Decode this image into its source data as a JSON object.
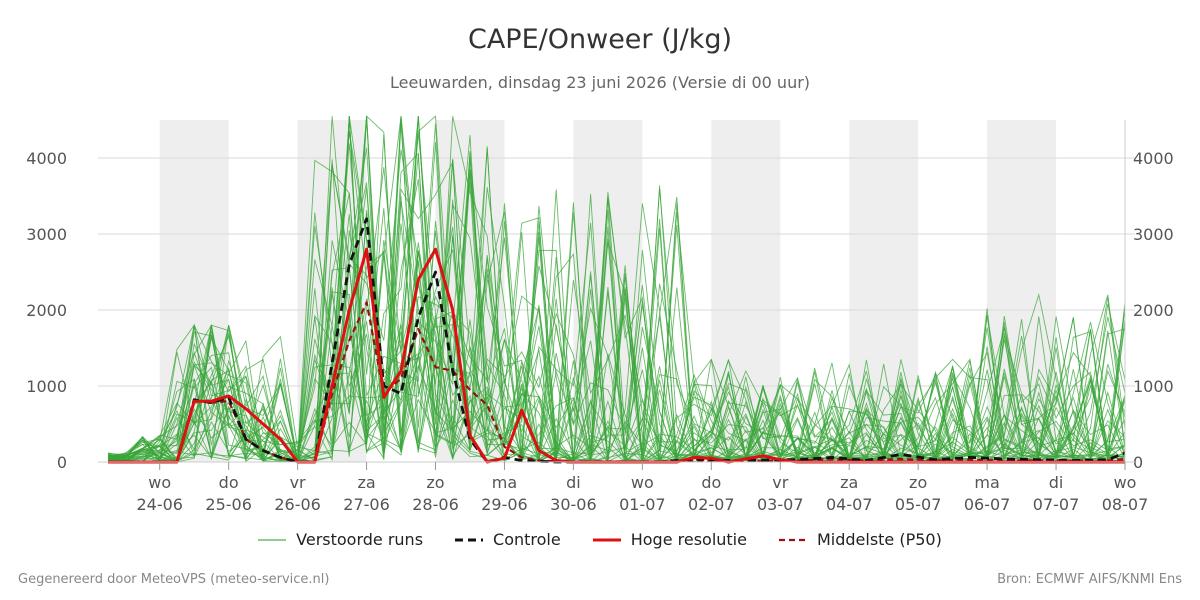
{
  "header": {
    "title": "CAPE/Onweer (J/kg)",
    "subtitle": "Leeuwarden, dinsdag 23 juni 2026 (Versie di 00 uur)"
  },
  "footer": {
    "left": "Gegenereerd door MeteoVPS (meteo-service.nl)",
    "right": "Bron: ECMWF AIFS/KNMI Ens"
  },
  "legend": {
    "items": [
      {
        "label": "Verstoorde runs",
        "color": "#4caf50",
        "style": "thin"
      },
      {
        "label": "Controle",
        "color": "#111111",
        "style": "dashed"
      },
      {
        "label": "Hoge resolutie",
        "color": "#dd1111",
        "style": "solid"
      },
      {
        "label": "Middelste (P50)",
        "color": "#991111",
        "style": "dashed-thin"
      }
    ]
  },
  "chart_data": {
    "type": "line",
    "title": "CAPE/Onweer (J/kg)",
    "subtitle": "Leeuwarden, dinsdag 23 juni 2026 (Versie di 00 uur)",
    "xlim": [
      0,
      14.75
    ],
    "ylim": [
      0,
      4500
    ],
    "y_ticks": [
      0,
      1000,
      2000,
      3000,
      4000
    ],
    "x_ticks": [
      {
        "x": 0.75,
        "day": "wo",
        "date": "24-06"
      },
      {
        "x": 1.75,
        "day": "do",
        "date": "25-06"
      },
      {
        "x": 2.75,
        "day": "vr",
        "date": "26-06"
      },
      {
        "x": 3.75,
        "day": "za",
        "date": "27-06"
      },
      {
        "x": 4.75,
        "day": "zo",
        "date": "28-06"
      },
      {
        "x": 5.75,
        "day": "ma",
        "date": "29-06"
      },
      {
        "x": 6.75,
        "day": "di",
        "date": "30-06"
      },
      {
        "x": 7.75,
        "day": "wo",
        "date": "01-07"
      },
      {
        "x": 8.75,
        "day": "do",
        "date": "02-07"
      },
      {
        "x": 9.75,
        "day": "vr",
        "date": "03-07"
      },
      {
        "x": 10.75,
        "day": "za",
        "date": "04-07"
      },
      {
        "x": 11.75,
        "day": "zo",
        "date": "05-07"
      },
      {
        "x": 12.75,
        "day": "ma",
        "date": "06-07"
      },
      {
        "x": 13.75,
        "day": "di",
        "date": "07-07"
      },
      {
        "x": 14.75,
        "day": "wo",
        "date": "08-07"
      }
    ],
    "shaded_days": [
      [
        0.75,
        1.75
      ],
      [
        2.75,
        3.75
      ],
      [
        4.75,
        5.75
      ],
      [
        6.75,
        7.75
      ],
      [
        8.75,
        9.75
      ],
      [
        10.75,
        11.75
      ],
      [
        12.75,
        13.75
      ]
    ],
    "grid": true,
    "legend_position": "bottom",
    "high_res": {
      "name": "Hoge resolutie",
      "color": "#dd1111",
      "points": [
        [
          0,
          0
        ],
        [
          0.5,
          0
        ],
        [
          1,
          0
        ],
        [
          1.25,
          800
        ],
        [
          1.5,
          800
        ],
        [
          1.75,
          870
        ],
        [
          2,
          700
        ],
        [
          2.25,
          500
        ],
        [
          2.5,
          300
        ],
        [
          2.75,
          0
        ],
        [
          3,
          0
        ],
        [
          3.25,
          1000
        ],
        [
          3.5,
          2000
        ],
        [
          3.75,
          2800
        ],
        [
          4,
          850
        ],
        [
          4.25,
          1200
        ],
        [
          4.5,
          2400
        ],
        [
          4.75,
          2800
        ],
        [
          5,
          2000
        ],
        [
          5.25,
          350
        ],
        [
          5.5,
          0
        ],
        [
          5.75,
          50
        ],
        [
          6,
          680
        ],
        [
          6.25,
          150
        ],
        [
          6.5,
          20
        ],
        [
          6.75,
          0
        ],
        [
          7,
          0
        ],
        [
          8,
          0
        ],
        [
          8.25,
          0
        ],
        [
          8.5,
          60
        ],
        [
          8.75,
          50
        ],
        [
          9,
          0
        ],
        [
          9.5,
          80
        ],
        [
          9.75,
          30
        ],
        [
          10,
          0
        ],
        [
          14.75,
          0
        ]
      ]
    },
    "control": {
      "name": "Controle",
      "color": "#111111",
      "points": [
        [
          0,
          0
        ],
        [
          0.5,
          0
        ],
        [
          1,
          0
        ],
        [
          1.25,
          820
        ],
        [
          1.5,
          780
        ],
        [
          1.75,
          850
        ],
        [
          2,
          300
        ],
        [
          2.25,
          150
        ],
        [
          2.5,
          60
        ],
        [
          2.75,
          0
        ],
        [
          3,
          0
        ],
        [
          3.25,
          1300
        ],
        [
          3.5,
          2600
        ],
        [
          3.75,
          3200
        ],
        [
          4,
          1000
        ],
        [
          4.25,
          900
        ],
        [
          4.5,
          1900
        ],
        [
          4.75,
          2500
        ],
        [
          5,
          1200
        ],
        [
          5.25,
          300
        ],
        [
          5.5,
          0
        ],
        [
          5.75,
          60
        ],
        [
          6,
          20
        ],
        [
          6.5,
          0
        ],
        [
          8,
          0
        ],
        [
          8.5,
          40
        ],
        [
          9,
          20
        ],
        [
          10,
          30
        ],
        [
          10.5,
          60
        ],
        [
          11,
          20
        ],
        [
          11.5,
          100
        ],
        [
          12,
          30
        ],
        [
          12.5,
          60
        ],
        [
          13,
          40
        ],
        [
          13.5,
          30
        ],
        [
          14,
          20
        ],
        [
          14.5,
          30
        ],
        [
          14.75,
          120
        ]
      ]
    },
    "median": {
      "name": "Middelste (P50)",
      "color": "#991111",
      "points": [
        [
          0,
          0
        ],
        [
          0.5,
          0
        ],
        [
          1,
          0
        ],
        [
          1.25,
          820
        ],
        [
          1.5,
          780
        ],
        [
          1.75,
          800
        ],
        [
          2,
          300
        ],
        [
          2.25,
          150
        ],
        [
          2.5,
          60
        ],
        [
          2.75,
          0
        ],
        [
          3,
          0
        ],
        [
          3.25,
          900
        ],
        [
          3.5,
          1600
        ],
        [
          3.75,
          2100
        ],
        [
          4,
          900
        ],
        [
          4.25,
          1100
        ],
        [
          4.5,
          1750
        ],
        [
          4.75,
          1250
        ],
        [
          5,
          1200
        ],
        [
          5.25,
          950
        ],
        [
          5.5,
          750
        ],
        [
          5.75,
          200
        ],
        [
          6,
          60
        ],
        [
          6.25,
          20
        ],
        [
          6.75,
          0
        ],
        [
          8,
          0
        ],
        [
          8.5,
          20
        ],
        [
          9,
          10
        ],
        [
          10,
          20
        ],
        [
          10.5,
          40
        ],
        [
          11,
          20
        ],
        [
          11.5,
          40
        ],
        [
          12,
          20
        ],
        [
          12.5,
          30
        ],
        [
          13,
          20
        ],
        [
          13.5,
          20
        ],
        [
          14,
          20
        ],
        [
          14.5,
          20
        ],
        [
          14.75,
          40
        ]
      ]
    },
    "perturbed": {
      "name": "Verstoorde runs",
      "color": "#3aa63a",
      "count": 40,
      "seed": 17,
      "peaks": [
        {
          "x": [
            1.0,
            2.5
          ],
          "max": 1800
        },
        {
          "x": [
            3.0,
            5.75
          ],
          "max": 4550
        },
        {
          "x": [
            5.75,
            8.25
          ],
          "max": 4050
        },
        {
          "x": [
            8.25,
            12.5
          ],
          "max": 1350
        },
        {
          "x": [
            12.5,
            14.75
          ],
          "max": 2200
        }
      ]
    }
  }
}
